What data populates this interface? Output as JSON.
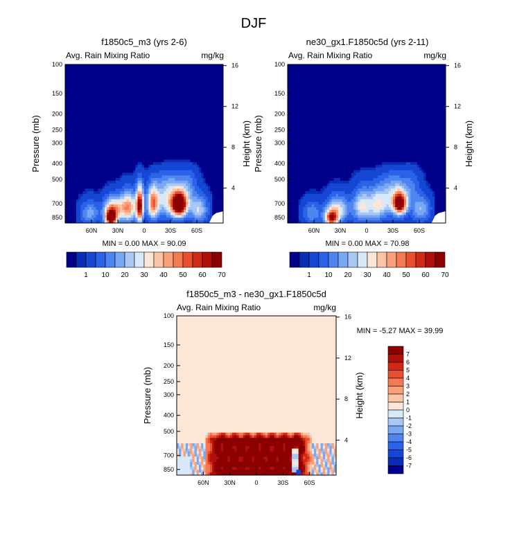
{
  "figure_title": "DJF",
  "colors": {
    "full_palette": [
      "#00008b",
      "#0a2db5",
      "#1546d4",
      "#2a62e8",
      "#4f85f0",
      "#7aa7f3",
      "#a9c7f5",
      "#d7e8f9",
      "#fde6d6",
      "#fbc4a4",
      "#f99f7a",
      "#f47a53",
      "#e8502f",
      "#d02a16",
      "#b0100a",
      "#8b0000"
    ],
    "diff_palette": [
      "#00008b",
      "#0a2db5",
      "#1546d4",
      "#2a62e8",
      "#4f85f0",
      "#7aa7f3",
      "#a9c7f5",
      "#d7e8f9",
      "#fde6d6",
      "#fbc4a4",
      "#f99f7a",
      "#f47a53",
      "#e8502f",
      "#d02a16",
      "#b0100a",
      "#8b0000"
    ]
  },
  "chart_data": [
    {
      "type": "heatmap",
      "title": "f1850c5_m3 (yrs 2-6)",
      "left_label": "Avg. Rain Mixing Ratio",
      "right_label": "mg/kg",
      "ylabel": "Pressure (mb)",
      "ylabel_right": "Height (km)",
      "x_ticks": [
        "60N",
        "30N",
        "0",
        "30S",
        "60S"
      ],
      "x_tick_values": [
        60,
        30,
        0,
        -30,
        -60
      ],
      "xlim": [
        90,
        -90
      ],
      "y_ticks": [
        "100",
        "150",
        "200",
        "250",
        "300",
        "400",
        "500",
        "700",
        "850"
      ],
      "y_tick_values": [
        100,
        150,
        200,
        250,
        300,
        400,
        500,
        700,
        850
      ],
      "ylim": [
        100,
        920
      ],
      "height_ticks": [
        "16",
        "12",
        "8",
        "4"
      ],
      "height_tick_values": [
        16,
        12,
        8,
        4
      ],
      "min_label": "MIN =   0.00   MAX =  90.09",
      "min": 0.0,
      "max": 90.09,
      "blobs": [
        {
          "lat": 38,
          "p": 860,
          "amp": 72,
          "dlat": 6,
          "dp": 90
        },
        {
          "lat": 35,
          "p": 760,
          "amp": 42,
          "dlat": 10,
          "dp": 120
        },
        {
          "lat": 5,
          "p": 720,
          "amp": 68,
          "dlat": 4,
          "dp": 170
        },
        {
          "lat": 18,
          "p": 740,
          "amp": 45,
          "dlat": 9,
          "dp": 140
        },
        {
          "lat": -10,
          "p": 700,
          "amp": 45,
          "dlat": 6,
          "dp": 150
        },
        {
          "lat": -40,
          "p": 710,
          "amp": 90,
          "dlat": 8,
          "dp": 110
        },
        {
          "lat": -28,
          "p": 650,
          "amp": 30,
          "dlat": 16,
          "dp": 180
        },
        {
          "lat": -62,
          "p": 760,
          "amp": 25,
          "dlat": 10,
          "dp": 130
        },
        {
          "lat": 62,
          "p": 800,
          "amp": 18,
          "dlat": 10,
          "dp": 120
        },
        {
          "lat": -50,
          "p": 560,
          "amp": 12,
          "dlat": 10,
          "dp": 150
        }
      ]
    },
    {
      "type": "heatmap",
      "title": "ne30_gx1.F1850c5d (yrs 2-11)",
      "left_label": "Avg. Rain Mixing Ratio",
      "right_label": "mg/kg",
      "ylabel": "Pressure (mb)",
      "ylabel_right": "Height (km)",
      "x_ticks": [
        "60N",
        "30N",
        "0",
        "30S",
        "60S"
      ],
      "x_tick_values": [
        60,
        30,
        0,
        -30,
        -60
      ],
      "xlim": [
        90,
        -90
      ],
      "y_ticks": [
        "100",
        "150",
        "200",
        "250",
        "300",
        "400",
        "500",
        "700",
        "850"
      ],
      "y_tick_values": [
        100,
        150,
        200,
        250,
        300,
        400,
        500,
        700,
        850
      ],
      "ylim": [
        100,
        920
      ],
      "height_ticks": [
        "16",
        "12",
        "8",
        "4"
      ],
      "height_tick_values": [
        16,
        12,
        8,
        4
      ],
      "min_label": "MIN =   0.00   MAX =  70.98",
      "min": 0.0,
      "max": 70.98,
      "blobs": [
        {
          "lat": 40,
          "p": 860,
          "amp": 58,
          "dlat": 7,
          "dp": 90
        },
        {
          "lat": 33,
          "p": 760,
          "amp": 30,
          "dlat": 12,
          "dp": 130
        },
        {
          "lat": 5,
          "p": 730,
          "amp": 30,
          "dlat": 10,
          "dp": 160
        },
        {
          "lat": -12,
          "p": 710,
          "amp": 28,
          "dlat": 10,
          "dp": 150
        },
        {
          "lat": -38,
          "p": 700,
          "amp": 71,
          "dlat": 7,
          "dp": 100
        },
        {
          "lat": -30,
          "p": 640,
          "amp": 25,
          "dlat": 14,
          "dp": 170
        },
        {
          "lat": -62,
          "p": 760,
          "amp": 20,
          "dlat": 10,
          "dp": 130
        },
        {
          "lat": 62,
          "p": 800,
          "amp": 15,
          "dlat": 10,
          "dp": 120
        },
        {
          "lat": -50,
          "p": 560,
          "amp": 10,
          "dlat": 10,
          "dp": 150
        }
      ]
    },
    {
      "type": "heatmap",
      "title": "f1850c5_m3 - ne30_gx1.F1850c5d",
      "left_label": "Avg. Rain Mixing Ratio",
      "right_label": "mg/kg",
      "ylabel": "Pressure (mb)",
      "ylabel_right": "Height (km)",
      "x_ticks": [
        "60N",
        "30N",
        "0",
        "30S",
        "60S"
      ],
      "x_tick_values": [
        60,
        30,
        0,
        -30,
        -60
      ],
      "xlim": [
        90,
        -90
      ],
      "y_ticks": [
        "100",
        "150",
        "200",
        "250",
        "300",
        "400",
        "500",
        "700",
        "850"
      ],
      "y_tick_values": [
        100,
        150,
        200,
        250,
        300,
        400,
        500,
        700,
        850
      ],
      "ylim": [
        100,
        920
      ],
      "height_ticks": [
        "16",
        "12",
        "8",
        "4"
      ],
      "height_tick_values": [
        16,
        12,
        8,
        4
      ],
      "min_label": "MIN =  -5.27   MAX =  39.99",
      "min": -5.27,
      "max": 39.99
    }
  ],
  "colorbars": {
    "full_labels": [
      "1",
      "10",
      "20",
      "30",
      "40",
      "50",
      "60",
      "70"
    ],
    "diff_labels": [
      "7",
      "6",
      "5",
      "4",
      "3",
      "2",
      "1",
      "0",
      "-1",
      "-2",
      "-3",
      "-4",
      "-5",
      "-6",
      "-7"
    ]
  }
}
